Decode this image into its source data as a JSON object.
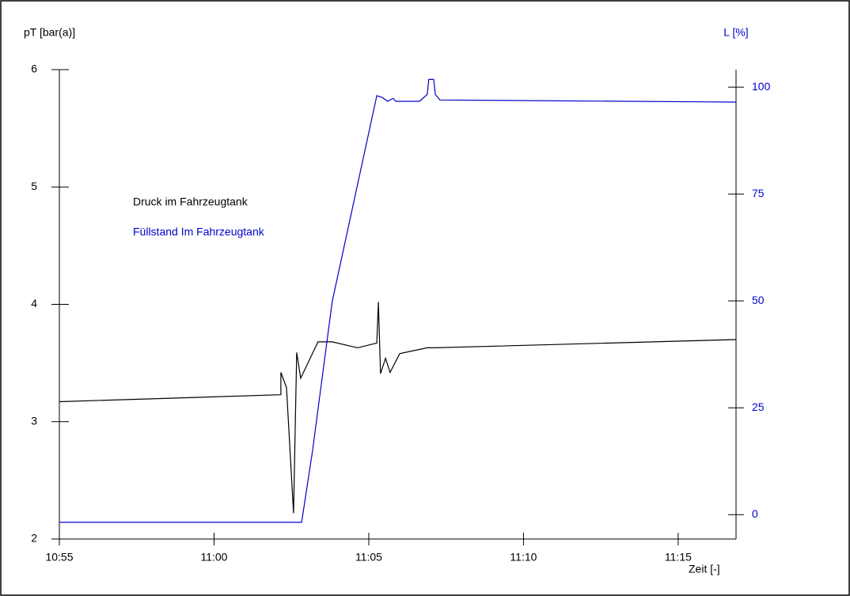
{
  "chart_data": {
    "type": "line",
    "y_label": "pT [bar(a)]",
    "y2_label": "L [%]",
    "x_label": "Zeit [-]",
    "xlim": [
      0,
      21.87
    ],
    "xticks": [
      {
        "value": 0,
        "label": "10:55"
      },
      {
        "value": 5,
        "label": "11:00"
      },
      {
        "value": 10,
        "label": "11:05"
      },
      {
        "value": 15,
        "label": "11:10"
      },
      {
        "value": 20,
        "label": "11:15"
      }
    ],
    "ylim": [
      2,
      6
    ],
    "yticks": [
      2,
      3,
      4,
      5,
      6
    ],
    "y2lim": [
      -5.7,
      104.1
    ],
    "y2ticks": [
      0,
      25,
      50,
      75,
      100
    ],
    "series": [
      {
        "name": "Druck im Fahrzeugtank",
        "color": "#000000",
        "x": [
          0,
          7.16,
          7.16,
          7.34,
          7.57,
          7.67,
          7.8,
          8.36,
          8.82,
          9.64,
          10.26,
          10.31,
          10.38,
          10.54,
          10.69,
          11.0,
          11.89,
          12.15,
          21.87
        ],
        "values": [
          3.17,
          3.23,
          3.42,
          3.29,
          2.22,
          3.59,
          3.37,
          3.68,
          3.68,
          3.63,
          3.67,
          4.02,
          3.41,
          3.54,
          3.42,
          3.58,
          3.63,
          3.63,
          3.7
        ]
      },
      {
        "name": "Füllstand Im Fahrzeugtank",
        "color": "#0000cc",
        "axis": "y2",
        "x": [
          0,
          7.83,
          8.18,
          8.82,
          10.26,
          10.43,
          10.61,
          10.79,
          10.87,
          11.64,
          11.89,
          11.94,
          12.1,
          12.15,
          12.3,
          21.87
        ],
        "values": [
          -1.8,
          -1.8,
          14.8,
          49.9,
          98.0,
          97.6,
          96.7,
          97.4,
          96.7,
          96.7,
          98.3,
          101.8,
          101.8,
          98.3,
          97.0,
          96.5
        ]
      }
    ]
  }
}
